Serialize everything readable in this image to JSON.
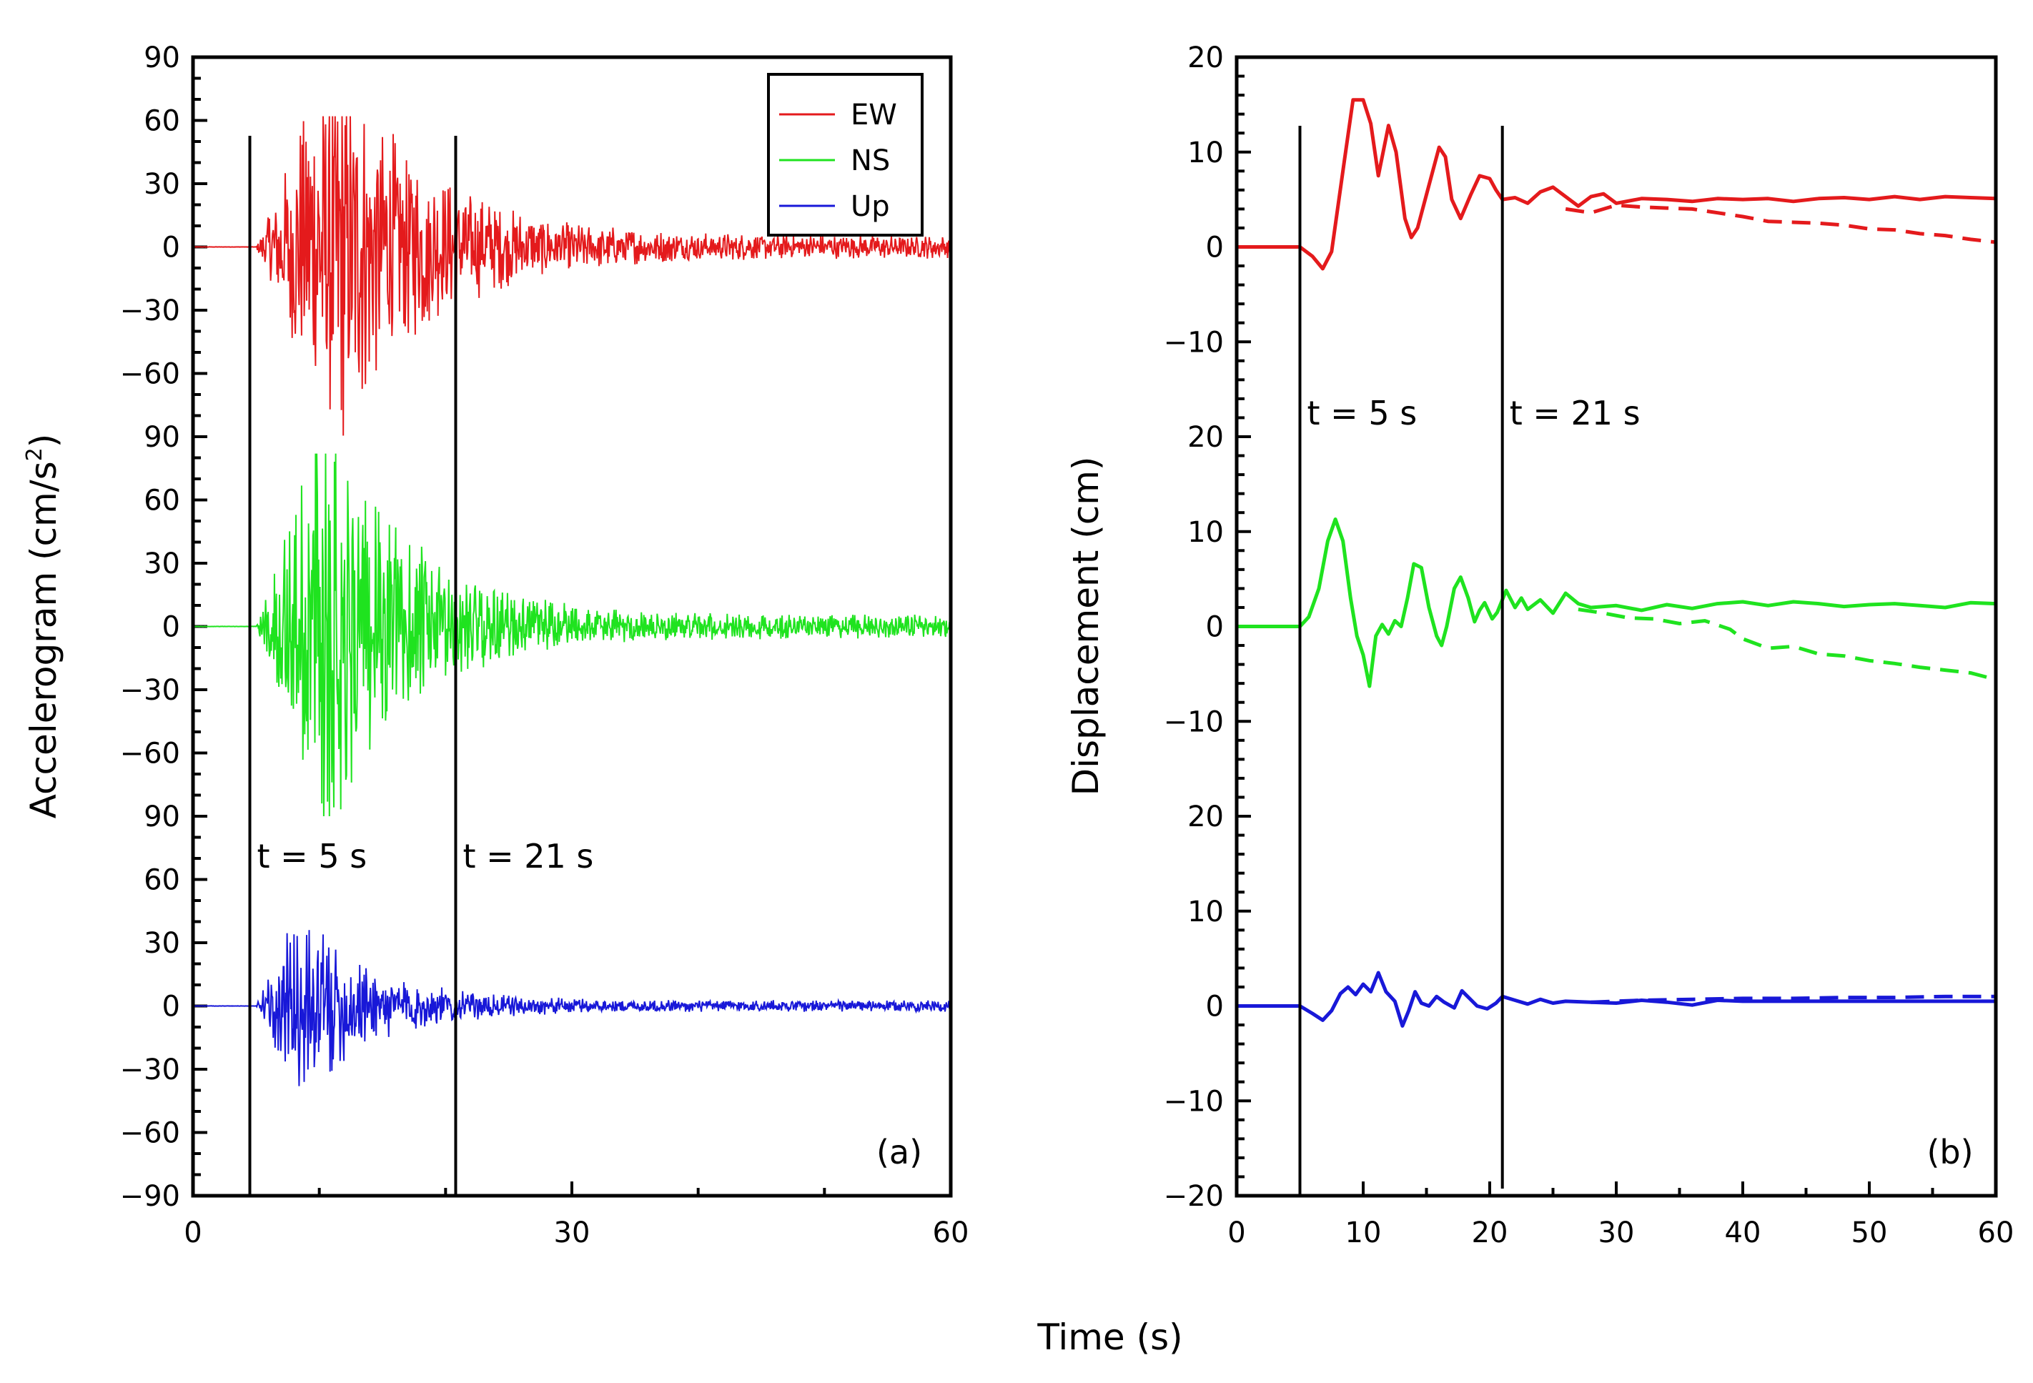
{
  "chart_data": [
    {
      "type": "line",
      "panel_label": "(a)",
      "ylabel_main": "Accelerogram",
      "ylabel_unit": "(cm/s",
      "ylabel_sup": "2",
      "ylabel_close": ")",
      "xlim": [
        0,
        60
      ],
      "xticks": [
        0,
        30,
        60
      ],
      "ylim": [
        -90,
        90
      ],
      "track_ticks": [
        -90,
        -60,
        -30,
        0,
        30,
        60,
        90
      ],
      "track_tick_labels": [
        "−90",
        "−60",
        "−30",
        "0",
        "30",
        "60",
        "90"
      ],
      "series": [
        {
          "name": "EW",
          "color": "#e41a1c",
          "offset": 0,
          "onset_s": 5.0,
          "decay_s": 7.0,
          "peak_s": 11.0,
          "peak_amp": 76,
          "tail_amp": 4.0,
          "extremes": {
            "max": 62,
            "min": -93
          }
        },
        {
          "name": "NS",
          "color": "#1fe31f",
          "offset": 1,
          "onset_s": 5.0,
          "decay_s": 6.5,
          "peak_s": 10.5,
          "peak_amp": 82,
          "tail_amp": 4.0,
          "extremes": {
            "max": 82,
            "min": -90
          }
        },
        {
          "name": "Up",
          "color": "#1818d8",
          "offset": 2,
          "onset_s": 5.0,
          "decay_s": 5.5,
          "peak_s": 8.5,
          "peak_amp": 36,
          "tail_amp": 2.0,
          "extremes": {
            "max": 46,
            "min": -38
          }
        }
      ],
      "markers": [
        {
          "t": 4.5,
          "label": "t = 5 s"
        },
        {
          "t": 20.8,
          "label": "t = 21 s"
        }
      ],
      "legend": {
        "position": "top-right",
        "entries": [
          "EW",
          "NS",
          "Up"
        ]
      }
    },
    {
      "type": "line",
      "panel_label": "(b)",
      "ylabel": "Displacement  (cm)",
      "xlim": [
        0,
        60
      ],
      "xticks": [
        0,
        10,
        20,
        30,
        40,
        50,
        60
      ],
      "ylim": [
        -20,
        20
      ],
      "track_ticks": [
        -20,
        -10,
        0,
        10,
        20
      ],
      "track_tick_labels": [
        "−20",
        "−10",
        "0",
        "10",
        "20"
      ],
      "series": [
        {
          "name": "EW",
          "color": "#e41a1c",
          "offset": 0,
          "solid": [
            [
              0,
              0
            ],
            [
              5,
              0
            ],
            [
              6,
              -1
            ],
            [
              6.8,
              -2.3
            ],
            [
              7.5,
              -0.5
            ],
            [
              8.5,
              9
            ],
            [
              9.2,
              15.5
            ],
            [
              10,
              15.5
            ],
            [
              10.6,
              13
            ],
            [
              11.2,
              7.5
            ],
            [
              12,
              12.8
            ],
            [
              12.6,
              10
            ],
            [
              13.3,
              3
            ],
            [
              13.8,
              1
            ],
            [
              14.3,
              2
            ],
            [
              15.2,
              6.5
            ],
            [
              16,
              10.5
            ],
            [
              16.5,
              9.5
            ],
            [
              17,
              5
            ],
            [
              17.7,
              3
            ],
            [
              18.5,
              5.5
            ],
            [
              19.2,
              7.5
            ],
            [
              20,
              7.2
            ],
            [
              20.5,
              6
            ],
            [
              21,
              5
            ],
            [
              22,
              5.2
            ],
            [
              23,
              4.6
            ],
            [
              24,
              5.8
            ],
            [
              25,
              6.3
            ],
            [
              26,
              5.3
            ],
            [
              27,
              4.3
            ],
            [
              28,
              5.3
            ],
            [
              29,
              5.6
            ],
            [
              30,
              4.6
            ],
            [
              32,
              5.1
            ],
            [
              34,
              5.0
            ],
            [
              36,
              4.8
            ],
            [
              38,
              5.1
            ],
            [
              40,
              5.0
            ],
            [
              42,
              5.1
            ],
            [
              44,
              4.8
            ],
            [
              46,
              5.1
            ],
            [
              48,
              5.2
            ],
            [
              50,
              5.0
            ],
            [
              52,
              5.3
            ],
            [
              54,
              5.0
            ],
            [
              56,
              5.3
            ],
            [
              58,
              5.2
            ],
            [
              60,
              5.1
            ]
          ],
          "dashed": [
            [
              26,
              4
            ],
            [
              28,
              3.6
            ],
            [
              30,
              4.4
            ],
            [
              32,
              4.2
            ],
            [
              34,
              4.1
            ],
            [
              36,
              4.0
            ],
            [
              38,
              3.6
            ],
            [
              40,
              3.2
            ],
            [
              42,
              2.7
            ],
            [
              44,
              2.6
            ],
            [
              46,
              2.5
            ],
            [
              48,
              2.3
            ],
            [
              50,
              1.9
            ],
            [
              52,
              1.8
            ],
            [
              54,
              1.4
            ],
            [
              56,
              1.2
            ],
            [
              58,
              0.8
            ],
            [
              60,
              0.5
            ]
          ]
        },
        {
          "name": "NS",
          "color": "#1fe31f",
          "offset": 1,
          "solid": [
            [
              0,
              0
            ],
            [
              5,
              0
            ],
            [
              5.7,
              1
            ],
            [
              6.5,
              4
            ],
            [
              7.2,
              9
            ],
            [
              7.8,
              11.3
            ],
            [
              8.4,
              9
            ],
            [
              9,
              3
            ],
            [
              9.5,
              -1
            ],
            [
              10,
              -3
            ],
            [
              10.5,
              -6.3
            ],
            [
              11,
              -1
            ],
            [
              11.5,
              0.2
            ],
            [
              12,
              -0.8
            ],
            [
              12.5,
              0.6
            ],
            [
              13,
              0
            ],
            [
              13.5,
              3
            ],
            [
              14,
              6.6
            ],
            [
              14.6,
              6.2
            ],
            [
              15.2,
              2
            ],
            [
              15.8,
              -1
            ],
            [
              16.2,
              -2
            ],
            [
              16.6,
              0
            ],
            [
              17.2,
              4
            ],
            [
              17.7,
              5.2
            ],
            [
              18.3,
              3
            ],
            [
              18.8,
              0.5
            ],
            [
              19.2,
              1.7
            ],
            [
              19.6,
              2.5
            ],
            [
              20.2,
              0.8
            ],
            [
              20.6,
              1.5
            ],
            [
              21.3,
              3.8
            ],
            [
              22,
              2
            ],
            [
              22.5,
              3
            ],
            [
              23,
              1.8
            ],
            [
              24,
              2.8
            ],
            [
              25,
              1.4
            ],
            [
              26,
              3.5
            ],
            [
              27,
              2.4
            ],
            [
              28,
              2.0
            ],
            [
              30,
              2.2
            ],
            [
              32,
              1.7
            ],
            [
              34,
              2.3
            ],
            [
              36,
              1.9
            ],
            [
              38,
              2.4
            ],
            [
              40,
              2.6
            ],
            [
              42,
              2.2
            ],
            [
              44,
              2.6
            ],
            [
              46,
              2.4
            ],
            [
              48,
              2.1
            ],
            [
              50,
              2.3
            ],
            [
              52,
              2.4
            ],
            [
              54,
              2.2
            ],
            [
              56,
              2.0
            ],
            [
              58,
              2.5
            ],
            [
              60,
              2.4
            ]
          ],
          "dashed": [
            [
              27,
              1.8
            ],
            [
              29,
              1.4
            ],
            [
              31,
              0.9
            ],
            [
              33,
              0.8
            ],
            [
              35,
              0.3
            ],
            [
              37,
              0.6
            ],
            [
              39,
              -0.3
            ],
            [
              40,
              -1.3
            ],
            [
              42,
              -2.3
            ],
            [
              44,
              -2.1
            ],
            [
              46,
              -2.9
            ],
            [
              48,
              -3.1
            ],
            [
              50,
              -3.6
            ],
            [
              52,
              -3.9
            ],
            [
              54,
              -4.3
            ],
            [
              56,
              -4.6
            ],
            [
              58,
              -4.9
            ],
            [
              60,
              -5.6
            ]
          ]
        },
        {
          "name": "Up",
          "color": "#1818d8",
          "offset": 2,
          "solid": [
            [
              0,
              0
            ],
            [
              5,
              0
            ],
            [
              6,
              -0.8
            ],
            [
              6.8,
              -1.5
            ],
            [
              7.5,
              -0.5
            ],
            [
              8.2,
              1.3
            ],
            [
              8.8,
              2
            ],
            [
              9.4,
              1.2
            ],
            [
              10,
              2.3
            ],
            [
              10.6,
              1.5
            ],
            [
              11.2,
              3.5
            ],
            [
              11.8,
              1.5
            ],
            [
              12.5,
              0.5
            ],
            [
              13.1,
              -2.1
            ],
            [
              13.6,
              -0.5
            ],
            [
              14.1,
              1.5
            ],
            [
              14.6,
              0.3
            ],
            [
              15.2,
              0
            ],
            [
              15.8,
              1
            ],
            [
              16.4,
              0.4
            ],
            [
              17.2,
              -0.2
            ],
            [
              17.8,
              1.6
            ],
            [
              18.4,
              0.8
            ],
            [
              19,
              0
            ],
            [
              19.8,
              -0.3
            ],
            [
              20.5,
              0.3
            ],
            [
              21,
              1
            ],
            [
              22,
              0.6
            ],
            [
              23,
              0.2
            ],
            [
              24,
              0.7
            ],
            [
              25,
              0.3
            ],
            [
              26,
              0.5
            ],
            [
              28,
              0.4
            ],
            [
              30,
              0.3
            ],
            [
              32,
              0.6
            ],
            [
              34,
              0.4
            ],
            [
              36,
              0.1
            ],
            [
              38,
              0.6
            ],
            [
              40,
              0.5
            ],
            [
              42,
              0.5
            ],
            [
              44,
              0.5
            ],
            [
              46,
              0.5
            ],
            [
              48,
              0.5
            ],
            [
              50,
              0.5
            ],
            [
              52,
              0.5
            ],
            [
              54,
              0.5
            ],
            [
              56,
              0.5
            ],
            [
              58,
              0.5
            ],
            [
              60,
              0.5
            ]
          ],
          "dashed": [
            [
              28,
              0.4
            ],
            [
              32,
              0.6
            ],
            [
              36,
              0.7
            ],
            [
              40,
              0.8
            ],
            [
              44,
              0.8
            ],
            [
              48,
              0.9
            ],
            [
              52,
              0.9
            ],
            [
              56,
              1.0
            ],
            [
              60,
              1.0
            ]
          ]
        }
      ],
      "markers": [
        {
          "t": 5.0,
          "label": "t = 5 s"
        },
        {
          "t": 21.0,
          "label": "t = 21 s"
        }
      ]
    }
  ],
  "shared_xlabel": "Time  (s)"
}
